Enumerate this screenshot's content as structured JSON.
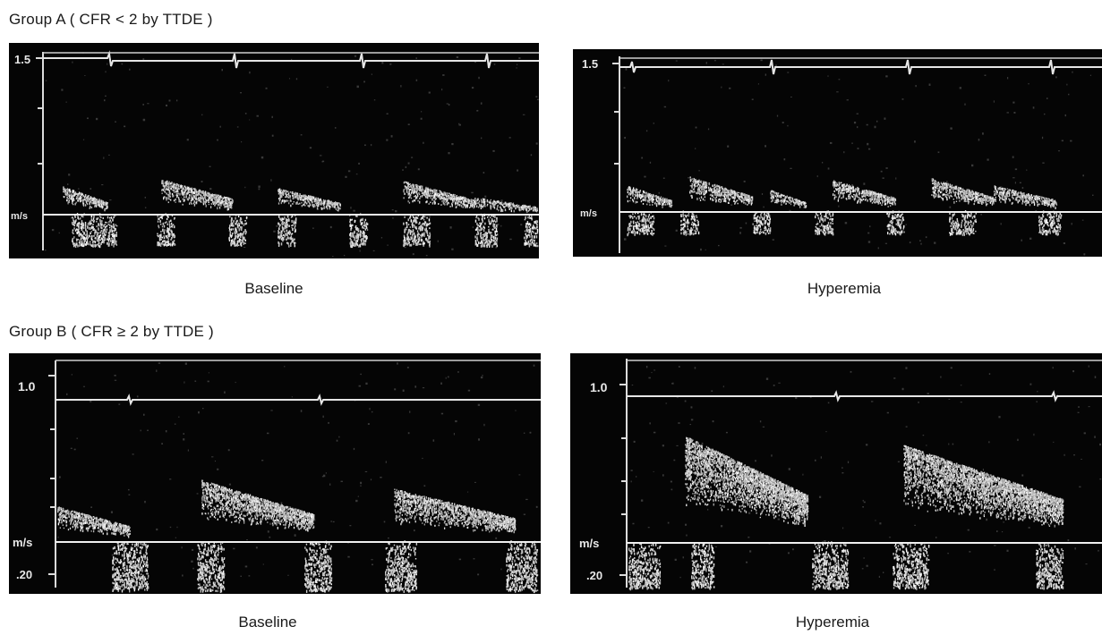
{
  "group_a": {
    "title": "Group A ( CFR < 2 by TTDE )",
    "baseline": {
      "caption": "Baseline",
      "scale_top": "1.5",
      "unit": "m/s"
    },
    "hyperemia": {
      "caption": "Hyperemia",
      "scale_top": "1.5",
      "unit": "m/s"
    }
  },
  "group_b": {
    "title": "Group B ( CFR ≥ 2 by TTDE )",
    "baseline": {
      "caption": "Baseline",
      "scale_top": "1.0",
      "unit": "m/s",
      "scale_bottom": ".20"
    },
    "hyperemia": {
      "caption": "Hyperemia",
      "scale_top": "1.0",
      "unit": "m/s",
      "scale_bottom": ".20"
    }
  }
}
